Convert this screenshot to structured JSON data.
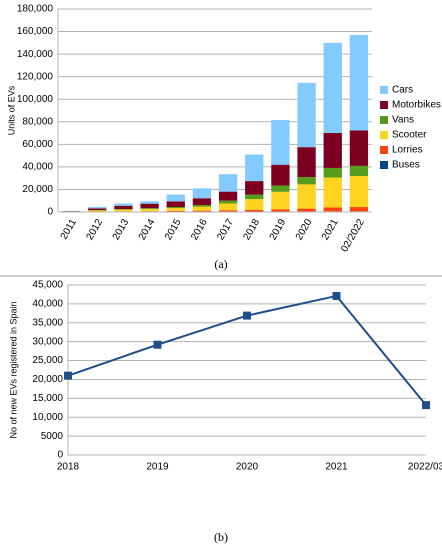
{
  "chart_data": [
    {
      "type": "bar",
      "stacked": true,
      "caption": "(a)",
      "ylabel": "Units of EVs",
      "grid": true,
      "legend": "right",
      "categories": [
        "2011",
        "2012",
        "2013",
        "2014",
        "2015",
        "2016",
        "2017",
        "2018",
        "2019",
        "2020",
        "2021",
        "02/2022"
      ],
      "series": [
        {
          "name": "Cars",
          "color": "#83caff",
          "values": [
            250,
            1300,
            1950,
            2100,
            6050,
            8800,
            15450,
            23600,
            39550,
            57000,
            79950,
            84600
          ]
        },
        {
          "name": "Motorbikes",
          "color": "#7e0021",
          "values": [
            300,
            1500,
            3000,
            4000,
            5000,
            6000,
            8000,
            12000,
            18500,
            26500,
            31000,
            31500
          ]
        },
        {
          "name": "Vans",
          "color": "#579d1c",
          "values": [
            100,
            300,
            500,
            700,
            1000,
            1500,
            2500,
            4000,
            5500,
            6500,
            8500,
            9000
          ]
        },
        {
          "name": "Scooter",
          "color": "#ffd320",
          "values": [
            200,
            1000,
            1500,
            2000,
            2500,
            3500,
            6000,
            9500,
            15500,
            21500,
            26500,
            27500
          ]
        },
        {
          "name": "Lorries",
          "color": "#ff420e",
          "values": [
            100,
            300,
            400,
            500,
            700,
            900,
            1200,
            1500,
            2000,
            2500,
            3500,
            3800
          ]
        },
        {
          "name": "Buses",
          "color": "#004586",
          "values": [
            50,
            100,
            150,
            200,
            250,
            300,
            350,
            400,
            450,
            500,
            550,
            600
          ]
        }
      ],
      "ylim": [
        0,
        180000
      ],
      "yticks": [
        0,
        {
          "value": 20000,
          "label": "20,000"
        },
        {
          "value": 40000,
          "label": "40,000"
        },
        {
          "value": 60000,
          "label": "60,000"
        },
        {
          "value": 80000,
          "label": "80,000"
        },
        {
          "value": 100000,
          "label": "100,000"
        },
        {
          "value": 120000,
          "label": "120,000"
        },
        {
          "value": 140000,
          "label": "140,000"
        },
        {
          "value": 160000,
          "label": "160,000"
        },
        {
          "value": 180000,
          "label": "180,000"
        }
      ]
    },
    {
      "type": "line",
      "caption": "(b)",
      "ylabel": "No of new EVs registered in Spain",
      "grid": true,
      "color": "#1f4e8c",
      "categories": [
        "2018",
        "2019",
        "2020",
        "2021",
        "2022/03"
      ],
      "values": [
        21000,
        29200,
        36900,
        42100,
        13200
      ],
      "ylim": [
        0,
        45000
      ],
      "yticks": [
        0,
        {
          "value": 5000,
          "label": "5000"
        },
        {
          "value": 10000,
          "label": "10,000"
        },
        {
          "value": 15000,
          "label": "15,000"
        },
        {
          "value": 20000,
          "label": "20,000"
        },
        {
          "value": 25000,
          "label": "25,000"
        },
        {
          "value": 30000,
          "label": "30,000"
        },
        {
          "value": 35000,
          "label": "35,000"
        },
        {
          "value": 40000,
          "label": "40,000"
        },
        {
          "value": 45000,
          "label": "45,000"
        }
      ]
    }
  ]
}
